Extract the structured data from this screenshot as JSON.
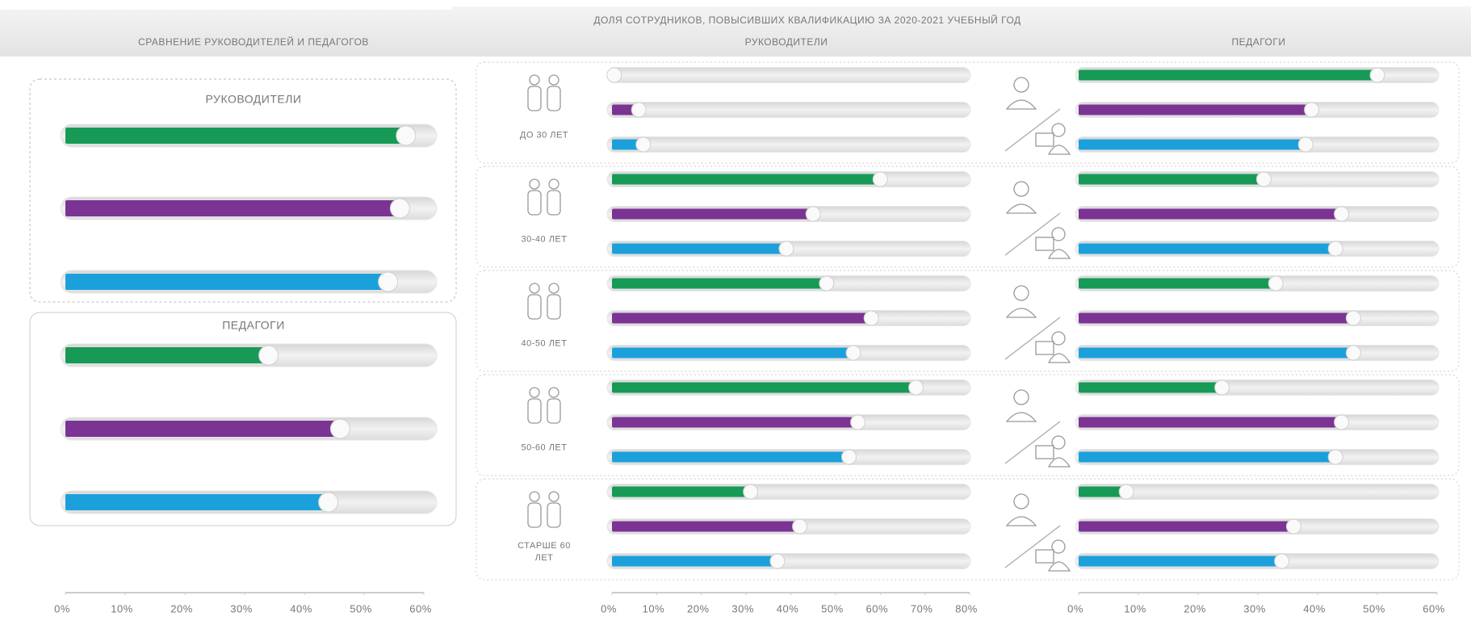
{
  "title": "ДОЛЯ СОТРУДНИКОВ, ПОВЫСИВШИХ КВАЛИФИКАЦИЮ ЗА 2020-2021 УЧЕБНЫЙ ГОД",
  "chart_data": [
    {
      "type": "bar",
      "orientation": "horizontal",
      "title": "СРАВНЕНИЕ РУКОВОДИТЕЛЕЙ И ПЕДАГОГОВ",
      "categories": [
        "РУКОВОДИТЕЛИ",
        "ПЕДАГОГИ"
      ],
      "series": [
        {
          "color": "#169a56",
          "values": [
            57,
            34
          ]
        },
        {
          "color": "#7b3394",
          "values": [
            56,
            46
          ]
        },
        {
          "color": "#1ca0db",
          "values": [
            54,
            44
          ]
        }
      ],
      "xlim": [
        0,
        60
      ],
      "xticks": [
        {
          "value": 0,
          "label": "0%"
        },
        {
          "value": 10,
          "label": "10%"
        },
        {
          "value": 20,
          "label": "20%"
        },
        {
          "value": 30,
          "label": "30%"
        },
        {
          "value": 40,
          "label": "40%"
        },
        {
          "value": 50,
          "label": "50%"
        },
        {
          "value": 60,
          "label": "60%"
        }
      ]
    },
    {
      "type": "bar",
      "orientation": "horizontal",
      "title": "РУКОВОДИТЕЛИ",
      "categories": [
        "ДО 30 ЛЕТ",
        "30-40 ЛЕТ",
        "40-50 ЛЕТ",
        "50-60 ЛЕТ",
        "СТАРШЕ 60 ЛЕТ"
      ],
      "series": [
        {
          "color": "#169a56",
          "values": [
            0.5,
            60,
            48,
            68,
            31
          ]
        },
        {
          "color": "#7b3394",
          "values": [
            6,
            45,
            58,
            55,
            42
          ]
        },
        {
          "color": "#1ca0db",
          "values": [
            7,
            39,
            54,
            53,
            37
          ]
        }
      ],
      "xlim": [
        0,
        80
      ],
      "xticks": [
        {
          "value": 0,
          "label": "0%"
        },
        {
          "value": 10,
          "label": "10%"
        },
        {
          "value": 20,
          "label": "20%"
        },
        {
          "value": 30,
          "label": "30%"
        },
        {
          "value": 40,
          "label": "40%"
        },
        {
          "value": 50,
          "label": "50%"
        },
        {
          "value": 60,
          "label": "60%"
        },
        {
          "value": 70,
          "label": "70%"
        },
        {
          "value": 80,
          "label": "80%"
        }
      ]
    },
    {
      "type": "bar",
      "orientation": "horizontal",
      "title": "ПЕДАГОГИ",
      "series": [
        {
          "color": "#169a56",
          "values": [
            50,
            31,
            33,
            24,
            8
          ]
        },
        {
          "color": "#7b3394",
          "values": [
            39,
            44,
            46,
            44,
            36
          ]
        },
        {
          "color": "#1ca0db",
          "values": [
            38,
            43,
            46,
            43,
            34
          ]
        }
      ],
      "xlim": [
        0,
        60
      ],
      "xticks": [
        {
          "value": 0,
          "label": "0%"
        },
        {
          "value": 10,
          "label": "10%"
        },
        {
          "value": 20,
          "label": "20%"
        },
        {
          "value": 30,
          "label": "30%"
        },
        {
          "value": 40,
          "label": "40%"
        },
        {
          "value": 50,
          "label": "50%"
        },
        {
          "value": 60,
          "label": "60%"
        }
      ]
    }
  ]
}
